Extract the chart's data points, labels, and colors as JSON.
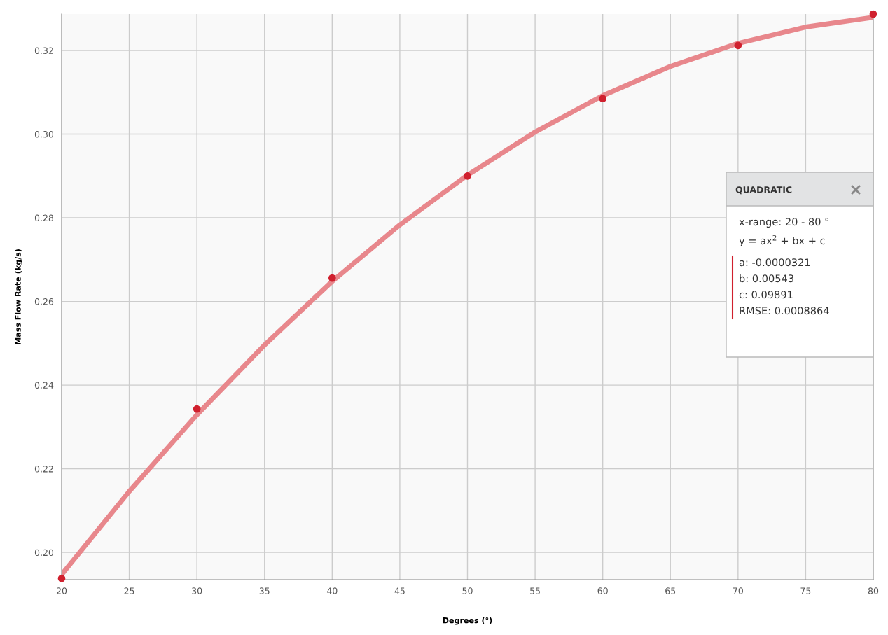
{
  "chart_data": {
    "type": "scatter",
    "xlabel": "Degrees (°)",
    "ylabel": "Mass Flow Rate (kg/s)",
    "xlim": [
      20,
      80
    ],
    "ylim": [
      0.1935,
      0.3287
    ],
    "xticks": [
      20,
      25,
      30,
      35,
      40,
      45,
      50,
      55,
      60,
      65,
      70,
      75,
      80
    ],
    "yticks": [
      {
        "value": 0.2,
        "label": "0.20"
      },
      {
        "value": 0.22,
        "label": "0.22"
      },
      {
        "value": 0.24,
        "label": "0.24"
      },
      {
        "value": 0.26,
        "label": "0.26"
      },
      {
        "value": 0.28,
        "label": "0.28"
      },
      {
        "value": 0.3,
        "label": "0.30"
      },
      {
        "value": 0.32,
        "label": "0.32"
      }
    ],
    "grid": true,
    "legend": false,
    "series": [
      {
        "type": "line",
        "color": "#e8878c",
        "marker": "none",
        "x": [
          20,
          25,
          30,
          35,
          40,
          45,
          50,
          55,
          60,
          65,
          70,
          75,
          80
        ],
        "values": [
          0.1947,
          0.2146,
          0.2329,
          0.2496,
          0.2648,
          0.2783,
          0.2902,
          0.3005,
          0.3092,
          0.3162,
          0.3217,
          0.3256,
          0.3279
        ]
      },
      {
        "color": "#d0202e",
        "marker": "circle",
        "x": [
          20,
          30,
          40,
          50,
          60,
          70,
          80
        ],
        "values": [
          0.1938,
          0.2343,
          0.2656,
          0.29,
          0.3085,
          0.3212,
          0.3287
        ]
      }
    ],
    "annotations": [
      "QUADRATIC",
      "x-range: 20 - 80 °",
      "y = ax$^{2}$ + bx + c",
      "a: -0.0000321",
      "b: 0.00543",
      "c: 0.09891",
      "RMSE: 0.0008864"
    ]
  }
}
